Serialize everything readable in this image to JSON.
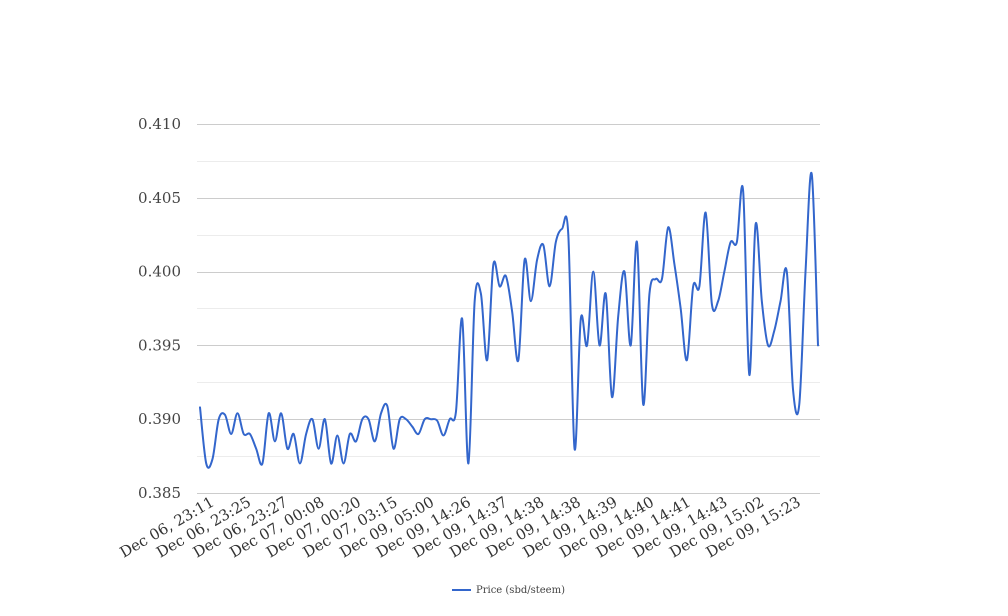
{
  "chart_data": {
    "type": "line",
    "title": "",
    "xlabel": "",
    "ylabel": "",
    "ylim": [
      0.385,
      0.41
    ],
    "yticks": [
      "0.385",
      "0.390",
      "0.395",
      "0.400",
      "0.405",
      "0.410"
    ],
    "ytick_values": [
      0.385,
      0.39,
      0.395,
      0.4,
      0.405,
      0.41
    ],
    "xtick_labels": [
      "Dec 06, 23:11",
      "Dec 06, 23:25",
      "Dec 06, 23:27",
      "Dec 07, 00:08",
      "Dec 07, 00:20",
      "Dec 07, 03:15",
      "Dec 09, 05:00",
      "Dec 09, 14:26",
      "Dec 09, 14:37",
      "Dec 09, 14:38",
      "Dec 09, 14:38",
      "Dec 09, 14:39",
      "Dec 09, 14:40",
      "Dec 09, 14:41",
      "Dec 09, 14:43",
      "Dec 09, 15:02",
      "Dec 09, 15:23"
    ],
    "grid": true,
    "legend_position": "bottom",
    "series": [
      {
        "name": "Price (sbd/steem)",
        "color": "#3366cc",
        "values": [
          0.3908,
          0.387,
          0.3873,
          0.39,
          0.3903,
          0.389,
          0.3904,
          0.389,
          0.389,
          0.388,
          0.387,
          0.3904,
          0.3885,
          0.3904,
          0.388,
          0.389,
          0.387,
          0.389,
          0.39,
          0.388,
          0.39,
          0.387,
          0.3889,
          0.387,
          0.389,
          0.3885,
          0.39,
          0.39,
          0.3885,
          0.3904,
          0.3909,
          0.388,
          0.39,
          0.39,
          0.3895,
          0.389,
          0.39,
          0.39,
          0.3899,
          0.3889,
          0.39,
          0.3905,
          0.3968,
          0.387,
          0.398,
          0.3985,
          0.394,
          0.4005,
          0.399,
          0.3997,
          0.3973,
          0.394,
          0.4008,
          0.398,
          0.4008,
          0.4018,
          0.399,
          0.402,
          0.4029,
          0.4025,
          0.388,
          0.3968,
          0.395,
          0.4,
          0.395,
          0.3985,
          0.3915,
          0.397,
          0.4,
          0.395,
          0.402,
          0.391,
          0.3985,
          0.3995,
          0.3995,
          0.403,
          0.4005,
          0.3975,
          0.394,
          0.399,
          0.399,
          0.404,
          0.3978,
          0.398,
          0.4,
          0.402,
          0.402,
          0.4055,
          0.393,
          0.4032,
          0.398,
          0.395,
          0.396,
          0.398,
          0.4,
          0.392,
          0.391,
          0.4,
          0.4066,
          0.395
        ]
      }
    ]
  }
}
